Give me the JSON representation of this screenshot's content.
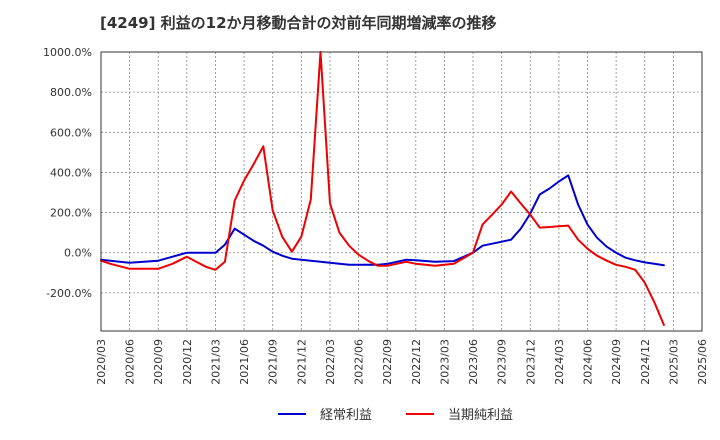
{
  "chart_data": {
    "type": "line",
    "title": "[4249]  利益の12か月移動合計の対前年同期増減率の推移",
    "xlabel": "",
    "ylabel": "",
    "ylim": [
      -390,
      1000
    ],
    "grid": true,
    "legend_position": "bottom-center",
    "y_ticks": [
      {
        "value": 1000,
        "label": "1000.0%"
      },
      {
        "value": 800,
        "label": "800.0%"
      },
      {
        "value": 600,
        "label": "600.0%"
      },
      {
        "value": 400,
        "label": "400.0%"
      },
      {
        "value": 200,
        "label": "200.0%"
      },
      {
        "value": 0,
        "label": "0.0%"
      },
      {
        "value": -200,
        "label": "-200.0%"
      }
    ],
    "categories": [
      "2020/03",
      "2020/06",
      "2020/09",
      "2020/12",
      "2021/03",
      "2021/06",
      "2021/09",
      "2021/12",
      "2022/03",
      "2022/06",
      "2022/09",
      "2022/12",
      "2023/03",
      "2023/06",
      "2023/09",
      "2023/12",
      "2024/03",
      "2024/06",
      "2024/09",
      "2024/12",
      "2025/03",
      "2025/06"
    ],
    "series": [
      {
        "name": "経常利益",
        "color": "#0000cc",
        "points": [
          {
            "x": 0,
            "y": -35
          },
          {
            "x": 1,
            "y": -50
          },
          {
            "x": 2,
            "y": -40
          },
          {
            "x": 3,
            "y": 0
          },
          {
            "x": 4,
            "y": 0
          },
          {
            "x": 4.33,
            "y": 40
          },
          {
            "x": 4.67,
            "y": 120
          },
          {
            "x": 5,
            "y": 90
          },
          {
            "x": 5.33,
            "y": 60
          },
          {
            "x": 5.67,
            "y": 35
          },
          {
            "x": 6,
            "y": 5
          },
          {
            "x": 6.33,
            "y": -15
          },
          {
            "x": 6.67,
            "y": -30
          },
          {
            "x": 7,
            "y": -35
          },
          {
            "x": 7.33,
            "y": -40
          },
          {
            "x": 7.67,
            "y": -45
          },
          {
            "x": 8,
            "y": -50
          },
          {
            "x": 8.33,
            "y": -55
          },
          {
            "x": 8.67,
            "y": -60
          },
          {
            "x": 9,
            "y": -60
          },
          {
            "x": 9.33,
            "y": -60
          },
          {
            "x": 9.67,
            "y": -60
          },
          {
            "x": 10,
            "y": -55
          },
          {
            "x": 10.33,
            "y": -45
          },
          {
            "x": 10.67,
            "y": -35
          },
          {
            "x": 11,
            "y": -38
          },
          {
            "x": 11.67,
            "y": -45
          },
          {
            "x": 12.33,
            "y": -42
          },
          {
            "x": 13,
            "y": 0
          },
          {
            "x": 13.33,
            "y": 35
          },
          {
            "x": 13.67,
            "y": 45
          },
          {
            "x": 14,
            "y": 55
          },
          {
            "x": 14.33,
            "y": 65
          },
          {
            "x": 14.67,
            "y": 120
          },
          {
            "x": 15,
            "y": 195
          },
          {
            "x": 15.33,
            "y": 290
          },
          {
            "x": 15.67,
            "y": 320
          },
          {
            "x": 16,
            "y": 355
          },
          {
            "x": 16.33,
            "y": 385
          },
          {
            "x": 16.67,
            "y": 240
          },
          {
            "x": 17,
            "y": 140
          },
          {
            "x": 17.33,
            "y": 75
          },
          {
            "x": 17.67,
            "y": 30
          },
          {
            "x": 18,
            "y": 0
          },
          {
            "x": 18.33,
            "y": -25
          },
          {
            "x": 18.67,
            "y": -38
          },
          {
            "x": 19,
            "y": -48
          },
          {
            "x": 19.33,
            "y": -55
          },
          {
            "x": 19.67,
            "y": -62
          }
        ]
      },
      {
        "name": "当期純利益",
        "color": "#ee0000",
        "points": [
          {
            "x": 0,
            "y": -40
          },
          {
            "x": 0.33,
            "y": -55
          },
          {
            "x": 1,
            "y": -80
          },
          {
            "x": 2,
            "y": -80
          },
          {
            "x": 2.5,
            "y": -55
          },
          {
            "x": 3,
            "y": -20
          },
          {
            "x": 3.33,
            "y": -45
          },
          {
            "x": 3.67,
            "y": -70
          },
          {
            "x": 4,
            "y": -85
          },
          {
            "x": 4.33,
            "y": -45
          },
          {
            "x": 4.67,
            "y": 260
          },
          {
            "x": 5,
            "y": 360
          },
          {
            "x": 5.33,
            "y": 440
          },
          {
            "x": 5.67,
            "y": 530
          },
          {
            "x": 6,
            "y": 210
          },
          {
            "x": 6.33,
            "y": 80
          },
          {
            "x": 6.67,
            "y": 5
          },
          {
            "x": 7,
            "y": 80
          },
          {
            "x": 7.33,
            "y": 265
          },
          {
            "x": 7.67,
            "y": 1000
          },
          {
            "x": 8,
            "y": 245
          },
          {
            "x": 8.33,
            "y": 100
          },
          {
            "x": 8.67,
            "y": 35
          },
          {
            "x": 9,
            "y": -10
          },
          {
            "x": 9.33,
            "y": -40
          },
          {
            "x": 9.67,
            "y": -65
          },
          {
            "x": 10,
            "y": -65
          },
          {
            "x": 10.33,
            "y": -55
          },
          {
            "x": 10.67,
            "y": -45
          },
          {
            "x": 11,
            "y": -55
          },
          {
            "x": 11.67,
            "y": -65
          },
          {
            "x": 12.33,
            "y": -55
          },
          {
            "x": 13,
            "y": 0
          },
          {
            "x": 13.33,
            "y": 140
          },
          {
            "x": 13.67,
            "y": 190
          },
          {
            "x": 14,
            "y": 240
          },
          {
            "x": 14.33,
            "y": 305
          },
          {
            "x": 14.67,
            "y": 245
          },
          {
            "x": 15,
            "y": 190
          },
          {
            "x": 15.33,
            "y": 125
          },
          {
            "x": 15.67,
            "y": 128
          },
          {
            "x": 16,
            "y": 132
          },
          {
            "x": 16.33,
            "y": 135
          },
          {
            "x": 16.67,
            "y": 65
          },
          {
            "x": 17,
            "y": 20
          },
          {
            "x": 17.33,
            "y": -15
          },
          {
            "x": 17.67,
            "y": -40
          },
          {
            "x": 18,
            "y": -60
          },
          {
            "x": 18.33,
            "y": -70
          },
          {
            "x": 18.67,
            "y": -85
          },
          {
            "x": 19,
            "y": -150
          },
          {
            "x": 19.33,
            "y": -245
          },
          {
            "x": 19.67,
            "y": -360
          }
        ]
      }
    ]
  }
}
